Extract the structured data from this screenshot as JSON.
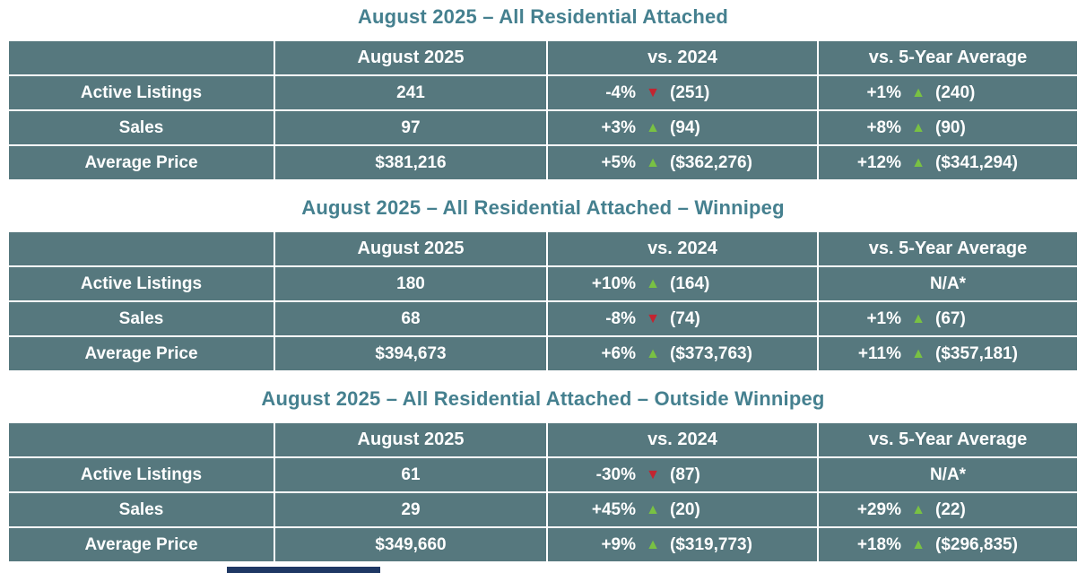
{
  "page": {
    "background": "#FFFFFF"
  },
  "colors": {
    "cell_background": "#56787E",
    "title_text": "#45808F",
    "cell_text": "#FFFFFF",
    "up_triangle": "#79C143",
    "down_triangle": "#C32430",
    "bottom_cutoff_bar": "#1F3864"
  },
  "icons": {
    "up": "▲",
    "down": "▼"
  },
  "tables": [
    {
      "title": "August 2025 – All Residential Attached",
      "columns": [
        "",
        "August 2025",
        "vs. 2024",
        "vs. 5-Year Average"
      ],
      "rows": [
        {
          "label": "Active Listings",
          "current": "241",
          "vs2024": {
            "pct": "-4%",
            "dir": "down",
            "value": "(251)"
          },
          "vs5yr": {
            "pct": "+1%",
            "dir": "up",
            "value": "(240)"
          }
        },
        {
          "label": "Sales",
          "current": "97",
          "vs2024": {
            "pct": "+3%",
            "dir": "up",
            "value": "(94)"
          },
          "vs5yr": {
            "pct": "+8%",
            "dir": "up",
            "value": "(90)"
          }
        },
        {
          "label": "Average Price",
          "current": "$381,216",
          "vs2024": {
            "pct": "+5%",
            "dir": "up",
            "value": "($362,276)"
          },
          "vs5yr": {
            "pct": "+12%",
            "dir": "up",
            "value": "($341,294)"
          }
        }
      ]
    },
    {
      "title": "August 2025 – All Residential Attached – Winnipeg",
      "columns": [
        "",
        "August 2025",
        "vs. 2024",
        "vs. 5-Year Average"
      ],
      "rows": [
        {
          "label": "Active Listings",
          "current": "180",
          "vs2024": {
            "pct": "+10%",
            "dir": "up",
            "value": "(164)"
          },
          "vs5yr": {
            "na": "N/A*"
          }
        },
        {
          "label": "Sales",
          "current": "68",
          "vs2024": {
            "pct": "-8%",
            "dir": "down",
            "value": "(74)"
          },
          "vs5yr": {
            "pct": "+1%",
            "dir": "up",
            "value": "(67)"
          }
        },
        {
          "label": "Average Price",
          "current": "$394,673",
          "vs2024": {
            "pct": "+6%",
            "dir": "up",
            "value": "($373,763)"
          },
          "vs5yr": {
            "pct": "+11%",
            "dir": "up",
            "value": "($357,181)"
          }
        }
      ]
    },
    {
      "title": "August 2025 – All Residential Attached – Outside Winnipeg",
      "columns": [
        "",
        "August 2025",
        "vs. 2024",
        "vs. 5-Year Average"
      ],
      "rows": [
        {
          "label": "Active Listings",
          "current": "61",
          "vs2024": {
            "pct": "-30%",
            "dir": "down",
            "value": "(87)"
          },
          "vs5yr": {
            "na": "N/A*"
          }
        },
        {
          "label": "Sales",
          "current": "29",
          "vs2024": {
            "pct": "+45%",
            "dir": "up",
            "value": "(20)"
          },
          "vs5yr": {
            "pct": "+29%",
            "dir": "up",
            "value": "(22)"
          }
        },
        {
          "label": "Average Price",
          "current": "$349,660",
          "vs2024": {
            "pct": "+9%",
            "dir": "up",
            "value": "($319,773)"
          },
          "vs5yr": {
            "pct": "+18%",
            "dir": "up",
            "value": "($296,835)"
          }
        }
      ]
    }
  ],
  "chart_data": [
    {
      "type": "table",
      "title": "August 2025 – All Residential Attached",
      "columns": [
        "",
        "August 2025",
        "vs. 2024",
        "vs. 5-Year Average"
      ],
      "rows": [
        [
          "Active Listings",
          241,
          "-4% ▼ (251)",
          "+1% ▲ (240)"
        ],
        [
          "Sales",
          97,
          "+3% ▲ (94)",
          "+8% ▲ (90)"
        ],
        [
          "Average Price",
          "$381,216",
          "+5% ▲ ($362,276)",
          "+12% ▲ ($341,294)"
        ]
      ]
    },
    {
      "type": "table",
      "title": "August 2025 – All Residential Attached – Winnipeg",
      "columns": [
        "",
        "August 2025",
        "vs. 2024",
        "vs. 5-Year Average"
      ],
      "rows": [
        [
          "Active Listings",
          180,
          "+10% ▲ (164)",
          "N/A*"
        ],
        [
          "Sales",
          68,
          "-8% ▼ (74)",
          "+1% ▲ (67)"
        ],
        [
          "Average Price",
          "$394,673",
          "+6% ▲ ($373,763)",
          "+11% ▲ ($357,181)"
        ]
      ]
    },
    {
      "type": "table",
      "title": "August 2025 – All Residential Attached – Outside Winnipeg",
      "columns": [
        "",
        "August 2025",
        "vs. 2024",
        "vs. 5-Year Average"
      ],
      "rows": [
        [
          "Active Listings",
          61,
          "-30% ▼ (87)",
          "N/A*"
        ],
        [
          "Sales",
          29,
          "+45% ▲ (20)",
          "+29% ▲ (22)"
        ],
        [
          "Average Price",
          "$349,660",
          "+9% ▲ ($319,773)",
          "+18% ▲ ($296,835)"
        ]
      ]
    }
  ]
}
